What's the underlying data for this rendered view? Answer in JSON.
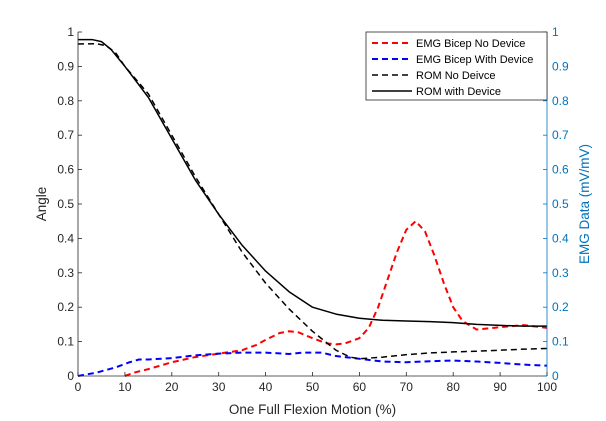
{
  "chart_data": {
    "type": "line",
    "xlabel": "One Full Flexion Motion (%)",
    "ylabel_left": "Angle",
    "ylabel_right": "EMG Data (mV/mV)",
    "xlim": [
      0,
      100
    ],
    "ylim_left": [
      0,
      1
    ],
    "ylim_right": [
      0,
      1
    ],
    "x_ticks": [
      0,
      10,
      20,
      30,
      40,
      50,
      60,
      70,
      80,
      90,
      100
    ],
    "y_ticks_left": [
      0,
      0.1,
      0.2,
      0.3,
      0.4,
      0.5,
      0.6,
      0.7,
      0.8,
      0.9,
      1
    ],
    "y_ticks_right": [
      0,
      0.1,
      0.2,
      0.3,
      0.4,
      0.5,
      0.6,
      0.7,
      0.8,
      0.9,
      1
    ],
    "grid": false,
    "legend_position": "top-right",
    "colors": {
      "emg_no_device": "#ff0000",
      "emg_with_device": "#0000ff",
      "rom": "#000000",
      "right_axis": "#0072bd"
    },
    "series": [
      {
        "name": "EMG Bicep No Device",
        "style": "dashed",
        "color": "#ff0000",
        "axis": "right",
        "x": [
          10,
          12,
          15,
          20,
          25,
          30,
          35,
          38,
          40,
          43,
          45,
          47,
          50,
          53,
          55,
          57,
          60,
          62,
          64,
          66,
          68,
          70,
          72,
          74,
          76,
          78,
          80,
          82,
          85,
          90,
          95,
          100
        ],
        "y": [
          0.0,
          0.01,
          0.02,
          0.04,
          0.055,
          0.065,
          0.075,
          0.09,
          0.105,
          0.125,
          0.13,
          0.127,
          0.11,
          0.095,
          0.092,
          0.095,
          0.11,
          0.14,
          0.2,
          0.28,
          0.36,
          0.425,
          0.45,
          0.42,
          0.35,
          0.27,
          0.2,
          0.16,
          0.135,
          0.142,
          0.148,
          0.14
        ]
      },
      {
        "name": "EMG Bicep With Device",
        "style": "dashed",
        "color": "#0000ff",
        "axis": "right",
        "x": [
          0,
          4,
          8,
          11,
          13,
          15,
          20,
          25,
          30,
          35,
          40,
          45,
          48,
          52,
          55,
          60,
          65,
          70,
          75,
          80,
          85,
          90,
          95,
          100
        ],
        "y": [
          0.0,
          0.01,
          0.025,
          0.04,
          0.048,
          0.048,
          0.052,
          0.06,
          0.065,
          0.068,
          0.068,
          0.064,
          0.068,
          0.068,
          0.058,
          0.05,
          0.042,
          0.04,
          0.043,
          0.045,
          0.042,
          0.038,
          0.033,
          0.03
        ]
      },
      {
        "name": "ROM No Deivce",
        "style": "dashed",
        "color": "#000000",
        "axis": "left",
        "x": [
          0,
          4,
          6,
          8,
          10,
          15,
          20,
          25,
          30,
          35,
          40,
          45,
          50,
          55,
          58,
          60,
          65,
          70,
          75,
          80,
          85,
          90,
          95,
          100
        ],
        "y": [
          0.965,
          0.966,
          0.96,
          0.94,
          0.9,
          0.82,
          0.7,
          0.58,
          0.47,
          0.36,
          0.27,
          0.195,
          0.13,
          0.075,
          0.055,
          0.05,
          0.055,
          0.062,
          0.067,
          0.07,
          0.072,
          0.075,
          0.078,
          0.08
        ]
      },
      {
        "name": "ROM with Device",
        "style": "solid",
        "color": "#000000",
        "axis": "left",
        "x": [
          0,
          3,
          5,
          7,
          10,
          15,
          20,
          25,
          30,
          35,
          40,
          45,
          50,
          55,
          60,
          65,
          70,
          75,
          80,
          85,
          90,
          95,
          100
        ],
        "y": [
          0.978,
          0.978,
          0.972,
          0.95,
          0.9,
          0.81,
          0.69,
          0.57,
          0.47,
          0.38,
          0.305,
          0.245,
          0.2,
          0.18,
          0.168,
          0.162,
          0.16,
          0.158,
          0.155,
          0.15,
          0.147,
          0.145,
          0.145
        ]
      }
    ]
  }
}
